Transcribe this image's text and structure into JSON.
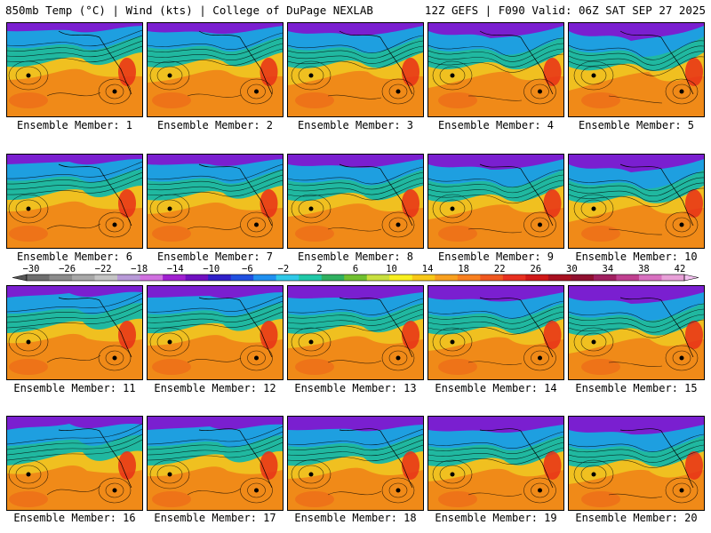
{
  "header": {
    "left": "850mb Temp (°C) | Wind (kts) | College of DuPage NEXLAB",
    "right": "12Z GEFS | F090 Valid: 06Z SAT SEP 27 2025"
  },
  "label_prefix": "Ensemble Member: ",
  "members": [
    "1",
    "2",
    "3",
    "4",
    "5",
    "6",
    "7",
    "8",
    "9",
    "10",
    "11",
    "12",
    "13",
    "14",
    "15",
    "16",
    "17",
    "18",
    "19",
    "20"
  ],
  "colorbar": {
    "labels": [
      "−30",
      "−26",
      "−22",
      "−18",
      "−14",
      "−10",
      "−6",
      "−2",
      "2",
      "6",
      "10",
      "14",
      "18",
      "22",
      "26",
      "30",
      "34",
      "38",
      "42"
    ],
    "colors": [
      "#6e6e6e",
      "#8c8c8c",
      "#a8a8a8",
      "#c4c4c4",
      "#b89ad8",
      "#d070e0",
      "#a020d0",
      "#7010c0",
      "#3020c8",
      "#2050e0",
      "#2090f0",
      "#30c8e8",
      "#20c8a8",
      "#30b060",
      "#70c030",
      "#c8e040",
      "#f8f020",
      "#f8c818",
      "#f8a020",
      "#f88020",
      "#f05820",
      "#e83020",
      "#d01818",
      "#a81020",
      "#901030",
      "#a02060",
      "#c04090",
      "#d870c0",
      "#e8a0d8"
    ]
  },
  "colors": {
    "cold": "#7a1fd0",
    "cool": "#1e9fe0",
    "mild": "#20b8a0",
    "warm": "#f0c020",
    "hot": "#f08a18",
    "very_hot": "#e83018"
  }
}
